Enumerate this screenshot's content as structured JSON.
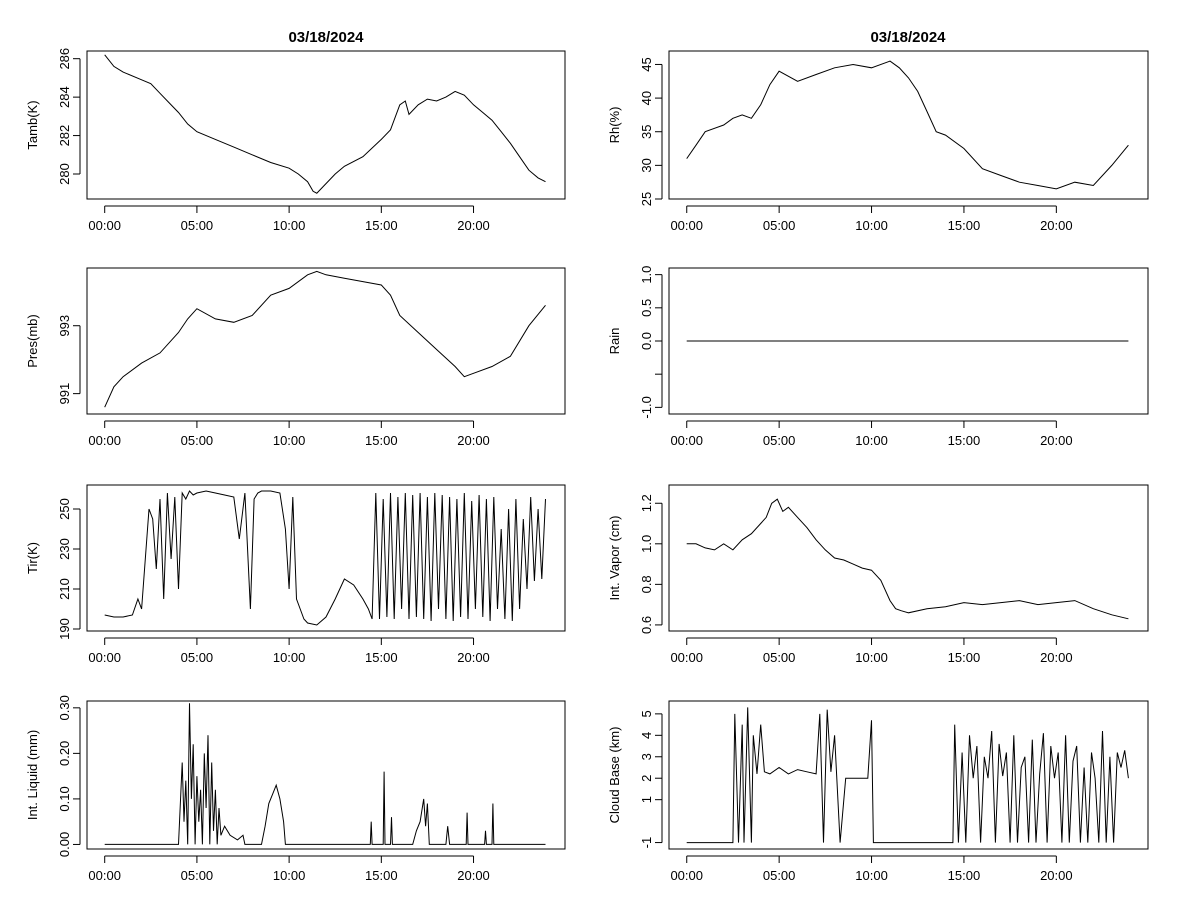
{
  "page": {
    "titles": [
      "03/18/2024",
      "03/18/2024"
    ]
  },
  "colors": {
    "line": "#000000",
    "background": "#ffffff",
    "frame": "#000000"
  },
  "chart_data": [
    {
      "id": "tamb",
      "type": "line",
      "ylabel": "Tamb(K)",
      "xlim": [
        0,
        24
      ],
      "ylim": [
        278.7,
        286.4
      ],
      "xticks": [
        0,
        5,
        10,
        15,
        20
      ],
      "xtick_labels": [
        "00:00",
        "05:00",
        "10:00",
        "15:00",
        "20:00"
      ],
      "yticks": [
        280,
        282,
        284,
        286
      ],
      "ytick_labels": [
        "280",
        "282",
        "284",
        "286"
      ],
      "series": [
        {
          "name": "Tamb",
          "x": [
            0,
            0.5,
            1,
            2,
            2.5,
            3,
            3.5,
            4,
            4.5,
            5,
            6,
            7,
            8,
            9,
            10,
            10.5,
            11,
            11.3,
            11.5,
            12,
            12.5,
            13,
            14,
            15,
            15.5,
            16,
            16.3,
            16.5,
            17,
            17.5,
            18,
            18.5,
            19,
            19.5,
            20,
            20.5,
            21,
            21.5,
            22,
            22.5,
            23,
            23.5,
            23.9
          ],
          "y": [
            286.2,
            285.6,
            285.3,
            284.9,
            284.7,
            284.2,
            283.7,
            283.2,
            282.6,
            282.2,
            281.8,
            281.4,
            281.0,
            280.6,
            280.3,
            280.0,
            279.6,
            279.1,
            279.0,
            279.5,
            280.0,
            280.4,
            280.9,
            281.8,
            282.3,
            283.6,
            283.8,
            283.1,
            283.6,
            283.9,
            283.8,
            284.0,
            284.3,
            284.1,
            283.6,
            283.2,
            282.8,
            282.2,
            281.6,
            280.9,
            280.2,
            279.8,
            279.6
          ]
        }
      ]
    },
    {
      "id": "rh",
      "type": "line",
      "ylabel": "Rh(%)",
      "xlim": [
        0,
        24
      ],
      "ylim": [
        25,
        47
      ],
      "xticks": [
        0,
        5,
        10,
        15,
        20
      ],
      "xtick_labels": [
        "00:00",
        "05:00",
        "10:00",
        "15:00",
        "20:00"
      ],
      "yticks": [
        25,
        30,
        35,
        40,
        45
      ],
      "ytick_labels": [
        "25",
        "30",
        "35",
        "40",
        "45"
      ],
      "series": [
        {
          "name": "Rh",
          "x": [
            0,
            0.5,
            1,
            2,
            2.5,
            3,
            3.5,
            4,
            4.5,
            5,
            6,
            7,
            8,
            9,
            10,
            11,
            11.5,
            12,
            12.5,
            13,
            13.5,
            14,
            15,
            16,
            17,
            18,
            19,
            20,
            21,
            22,
            23,
            23.9
          ],
          "y": [
            31,
            33,
            35,
            36,
            37,
            37.5,
            37,
            39,
            42,
            44,
            42.5,
            43.5,
            44.5,
            45,
            44.5,
            45.5,
            44.5,
            43,
            41,
            38,
            35,
            34.5,
            32.5,
            29.5,
            28.5,
            27.5,
            27,
            26.5,
            27.5,
            27,
            30,
            33
          ]
        }
      ]
    },
    {
      "id": "pres",
      "type": "line",
      "ylabel": "Pres(mb)",
      "xlim": [
        0,
        24
      ],
      "ylim": [
        990.4,
        994.7
      ],
      "xticks": [
        0,
        5,
        10,
        15,
        20
      ],
      "xtick_labels": [
        "00:00",
        "05:00",
        "10:00",
        "15:00",
        "20:00"
      ],
      "yticks": [
        991,
        993
      ],
      "ytick_labels": [
        "991",
        "993"
      ],
      "series": [
        {
          "name": "Pres",
          "x": [
            0,
            0.5,
            1,
            2,
            3,
            4,
            4.5,
            5,
            6,
            7,
            8,
            9,
            10,
            11,
            11.5,
            12,
            13,
            14,
            15,
            15.5,
            16,
            17,
            18,
            19,
            19.5,
            20,
            21,
            22,
            23,
            23.9
          ],
          "y": [
            990.6,
            991.2,
            991.5,
            991.9,
            992.2,
            992.8,
            993.2,
            993.5,
            993.2,
            993.1,
            993.3,
            993.9,
            994.1,
            994.5,
            994.6,
            994.5,
            994.4,
            994.3,
            994.2,
            993.9,
            993.3,
            992.8,
            992.3,
            991.8,
            991.5,
            991.6,
            991.8,
            992.1,
            993.0,
            993.6
          ]
        }
      ]
    },
    {
      "id": "rain",
      "type": "line",
      "ylabel": "Rain",
      "xlim": [
        0,
        24
      ],
      "ylim": [
        -1.1,
        1.1
      ],
      "xticks": [
        0,
        5,
        10,
        15,
        20
      ],
      "xtick_labels": [
        "00:00",
        "05:00",
        "10:00",
        "15:00",
        "20:00"
      ],
      "yticks": [
        -1.0,
        -0.5,
        0.0,
        0.5,
        1.0
      ],
      "ytick_labels": [
        "-1.0",
        "",
        "0.0",
        "0.5",
        "1.0"
      ],
      "series": [
        {
          "name": "Rain",
          "x": [
            0,
            23.9
          ],
          "y": [
            0,
            0
          ]
        }
      ]
    },
    {
      "id": "tir",
      "type": "line",
      "ylabel": "Tir(K)",
      "xlim": [
        0,
        24
      ],
      "ylim": [
        189,
        262
      ],
      "xticks": [
        0,
        5,
        10,
        15,
        20
      ],
      "xtick_labels": [
        "00:00",
        "05:00",
        "10:00",
        "15:00",
        "20:00"
      ],
      "yticks": [
        190,
        210,
        230,
        250
      ],
      "ytick_labels": [
        "190",
        "210",
        "230",
        "250"
      ],
      "series": [
        {
          "name": "Tir",
          "x": [
            0,
            0.5,
            1,
            1.5,
            1.8,
            2,
            2.2,
            2.4,
            2.6,
            2.8,
            3.0,
            3.2,
            3.4,
            3.6,
            3.8,
            4.0,
            4.2,
            4.4,
            4.6,
            4.8,
            5.0,
            5.5,
            6.0,
            6.5,
            7.0,
            7.3,
            7.6,
            7.9,
            8.1,
            8.3,
            8.5,
            9.0,
            9.5,
            9.8,
            10.0,
            10.2,
            10.4,
            10.6,
            10.8,
            11.0,
            11.5,
            12.0,
            12.5,
            13.0,
            13.5,
            14.0,
            14.3,
            14.5,
            14.7,
            14.9,
            15.1,
            15.3,
            15.5,
            15.7,
            15.9,
            16.1,
            16.3,
            16.5,
            16.7,
            16.9,
            17.1,
            17.3,
            17.5,
            17.7,
            17.9,
            18.1,
            18.3,
            18.5,
            18.7,
            18.9,
            19.1,
            19.3,
            19.5,
            19.7,
            19.9,
            20.1,
            20.3,
            20.5,
            20.7,
            20.9,
            21.1,
            21.3,
            21.5,
            21.7,
            21.9,
            22.1,
            22.3,
            22.5,
            22.7,
            22.9,
            23.1,
            23.3,
            23.5,
            23.7,
            23.9
          ],
          "y": [
            197,
            196,
            196,
            197,
            205,
            200,
            225,
            250,
            245,
            220,
            255,
            205,
            258,
            225,
            256,
            210,
            258,
            255,
            259,
            257,
            258,
            259,
            258,
            257,
            256,
            235,
            258,
            200,
            255,
            258,
            259,
            259,
            258,
            240,
            210,
            256,
            205,
            200,
            195,
            193,
            192,
            196,
            205,
            215,
            212,
            205,
            200,
            195,
            258,
            195,
            255,
            196,
            258,
            195,
            256,
            200,
            258,
            195,
            257,
            196,
            258,
            195,
            256,
            194,
            258,
            200,
            257,
            195,
            256,
            194,
            255,
            196,
            258,
            195,
            254,
            200,
            257,
            196,
            255,
            194,
            256,
            200,
            240,
            195,
            250,
            194,
            255,
            200,
            245,
            210,
            256,
            214,
            250,
            215,
            255
          ]
        }
      ]
    },
    {
      "id": "vapor",
      "type": "line",
      "ylabel": "Int. Vapor (cm)",
      "xlim": [
        0,
        24
      ],
      "ylim": [
        0.57,
        1.29
      ],
      "xticks": [
        0,
        5,
        10,
        15,
        20
      ],
      "xtick_labels": [
        "00:00",
        "05:00",
        "10:00",
        "15:00",
        "20:00"
      ],
      "yticks": [
        0.6,
        0.8,
        1.0,
        1.2
      ],
      "ytick_labels": [
        "0.6",
        "0.8",
        "1.0",
        "1.2"
      ],
      "series": [
        {
          "name": "Vapor",
          "x": [
            0,
            0.5,
            1,
            1.5,
            2,
            2.5,
            3,
            3.5,
            4,
            4.3,
            4.6,
            4.9,
            5.2,
            5.5,
            6,
            6.5,
            7,
            7.5,
            8,
            8.5,
            9,
            9.5,
            10,
            10.5,
            11,
            11.3,
            11.6,
            12,
            13,
            14,
            15,
            16,
            17,
            18,
            19,
            20,
            21,
            22,
            23,
            23.9
          ],
          "y": [
            1.0,
            1.0,
            0.98,
            0.97,
            1.0,
            0.97,
            1.02,
            1.05,
            1.1,
            1.13,
            1.2,
            1.22,
            1.16,
            1.18,
            1.13,
            1.08,
            1.02,
            0.97,
            0.93,
            0.92,
            0.9,
            0.88,
            0.87,
            0.82,
            0.72,
            0.68,
            0.67,
            0.66,
            0.68,
            0.69,
            0.71,
            0.7,
            0.71,
            0.72,
            0.7,
            0.71,
            0.72,
            0.68,
            0.65,
            0.63
          ]
        }
      ]
    },
    {
      "id": "liquid",
      "type": "line",
      "ylabel": "Int. Liquid (mm)",
      "xlim": [
        0,
        24
      ],
      "ylim": [
        -0.01,
        0.315
      ],
      "xticks": [
        0,
        5,
        10,
        15,
        20
      ],
      "xtick_labels": [
        "00:00",
        "05:00",
        "10:00",
        "15:00",
        "20:00"
      ],
      "yticks": [
        0.0,
        0.1,
        0.2,
        0.3
      ],
      "ytick_labels": [
        "0.00",
        "0.10",
        "0.20",
        "0.30"
      ],
      "series": [
        {
          "name": "Liquid",
          "x": [
            0,
            4.0,
            4.2,
            4.3,
            4.4,
            4.5,
            4.6,
            4.7,
            4.8,
            4.9,
            5.0,
            5.1,
            5.2,
            5.3,
            5.4,
            5.5,
            5.6,
            5.7,
            5.8,
            5.9,
            6.0,
            6.1,
            6.2,
            6.3,
            6.5,
            6.8,
            7.2,
            7.5,
            7.6,
            8.5,
            8.7,
            8.9,
            9.1,
            9.3,
            9.5,
            9.7,
            9.8,
            14.4,
            14.45,
            14.5,
            15.1,
            15.15,
            15.2,
            15.5,
            15.55,
            15.6,
            16.7,
            16.9,
            17.1,
            17.3,
            17.4,
            17.5,
            17.6,
            18.5,
            18.6,
            18.7,
            19.6,
            19.65,
            19.7,
            20.6,
            20.65,
            20.7,
            21.0,
            21.05,
            21.1,
            23.9
          ],
          "y": [
            0,
            0,
            0.18,
            0.05,
            0.14,
            0,
            0.31,
            0.1,
            0.22,
            0,
            0.15,
            0.05,
            0.12,
            0,
            0.2,
            0.08,
            0.24,
            0,
            0.18,
            0.03,
            0.12,
            0,
            0.08,
            0.02,
            0.04,
            0.02,
            0.01,
            0.02,
            0,
            0,
            0.04,
            0.09,
            0.11,
            0.13,
            0.1,
            0.05,
            0,
            0,
            0.05,
            0,
            0,
            0.16,
            0,
            0,
            0.06,
            0,
            0,
            0.03,
            0.05,
            0.1,
            0.04,
            0.09,
            0,
            0,
            0.04,
            0,
            0,
            0.07,
            0,
            0,
            0.03,
            0,
            0,
            0.09,
            0,
            0
          ]
        }
      ]
    },
    {
      "id": "cloudbase",
      "type": "line",
      "ylabel": "Cloud Base (km)",
      "xlim": [
        0,
        24
      ],
      "ylim": [
        -1.3,
        5.6
      ],
      "xticks": [
        0,
        5,
        10,
        15,
        20
      ],
      "xtick_labels": [
        "00:00",
        "05:00",
        "10:00",
        "15:00",
        "20:00"
      ],
      "yticks": [
        -1,
        1,
        2,
        3,
        4,
        5
      ],
      "ytick_labels": [
        "-1",
        "1",
        "2",
        "3",
        "4",
        "5"
      ],
      "series": [
        {
          "name": "CloudBase",
          "x": [
            0,
            2.5,
            2.6,
            2.8,
            3.0,
            3.1,
            3.3,
            3.5,
            3.6,
            3.8,
            4.0,
            4.2,
            4.5,
            5.0,
            5.5,
            6.0,
            6.5,
            7.0,
            7.2,
            7.4,
            7.6,
            7.8,
            8.0,
            8.3,
            8.6,
            9.0,
            9.5,
            9.8,
            10.0,
            10.1,
            10.5,
            14.4,
            14.5,
            14.7,
            14.9,
            15.1,
            15.3,
            15.5,
            15.7,
            15.9,
            16.1,
            16.3,
            16.5,
            16.7,
            16.9,
            17.1,
            17.3,
            17.5,
            17.7,
            17.9,
            18.1,
            18.3,
            18.5,
            18.7,
            18.9,
            19.1,
            19.3,
            19.5,
            19.7,
            19.9,
            20.1,
            20.3,
            20.5,
            20.7,
            20.9,
            21.1,
            21.3,
            21.5,
            21.7,
            21.9,
            22.1,
            22.3,
            22.5,
            22.7,
            22.9,
            23.1,
            23.3,
            23.5,
            23.7,
            23.9
          ],
          "y": [
            -1,
            -1,
            5,
            -1,
            4.5,
            -1,
            5.3,
            -1,
            4,
            2.2,
            4.5,
            2.3,
            2.2,
            2.5,
            2.2,
            2.4,
            2.3,
            2.2,
            5,
            -1,
            5.2,
            2.3,
            4,
            -1,
            2.0,
            2.0,
            2.0,
            2.0,
            4.7,
            -1,
            -1,
            -1,
            4.5,
            -1,
            3.2,
            -1,
            4,
            2.0,
            3.5,
            -1,
            3,
            2.0,
            4.2,
            -1,
            3.6,
            2.1,
            3.2,
            -1,
            4.0,
            -1,
            2.5,
            3.0,
            -1,
            3.8,
            -1,
            2.2,
            4.1,
            -1,
            3.5,
            2.0,
            3.2,
            -1,
            4.0,
            -1,
            2.8,
            3.5,
            -1,
            2.5,
            -1,
            3.2,
            2.0,
            -1,
            4.2,
            -1,
            3.0,
            -1,
            3.2,
            2.5,
            3.3,
            2.0
          ]
        }
      ]
    }
  ]
}
